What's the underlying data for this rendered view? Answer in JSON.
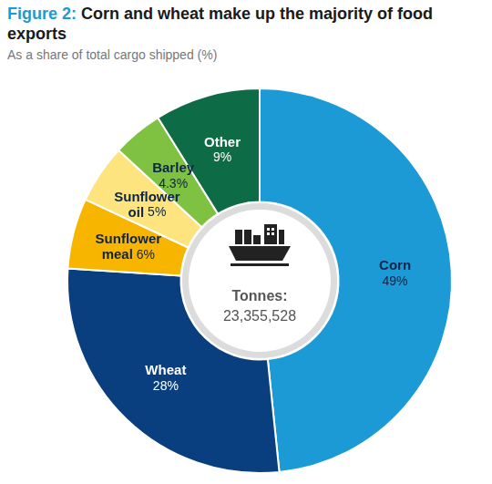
{
  "chart_data": {
    "type": "doughnut",
    "title": "Figure 2: Corn and wheat make up the majority of food exports",
    "subtitle": "As a share of total cargo shipped (%)",
    "categories": [
      "Corn",
      "Wheat",
      "Sunflower meal",
      "Sunflower oil",
      "Barley",
      "Other"
    ],
    "values": [
      49,
      28,
      6,
      5,
      4.3,
      9
    ],
    "value_labels": [
      "49%",
      "28%",
      "6%",
      "5%",
      "4.3%",
      "9%"
    ],
    "colors": [
      "#1c9ad6",
      "#0a3f7f",
      "#f7b500",
      "#fde47f",
      "#7fc241",
      "#0d6b45"
    ],
    "annotations": [
      "Tonnes:",
      "23,355,528"
    ],
    "data_labels": true
  }
}
